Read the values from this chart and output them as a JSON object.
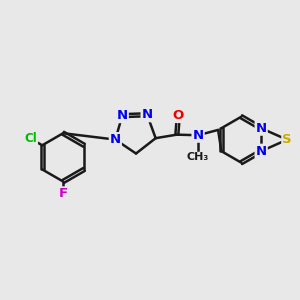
{
  "bg_color": "#e8e8e8",
  "bond_color": "#1a1a1a",
  "bond_width": 1.8,
  "atom_colors": {
    "N": "#0000ee",
    "O": "#ee0000",
    "S": "#ccaa00",
    "Cl": "#00bb00",
    "F": "#cc00cc"
  },
  "font_size": 9.5,
  "dbo": 0.055
}
